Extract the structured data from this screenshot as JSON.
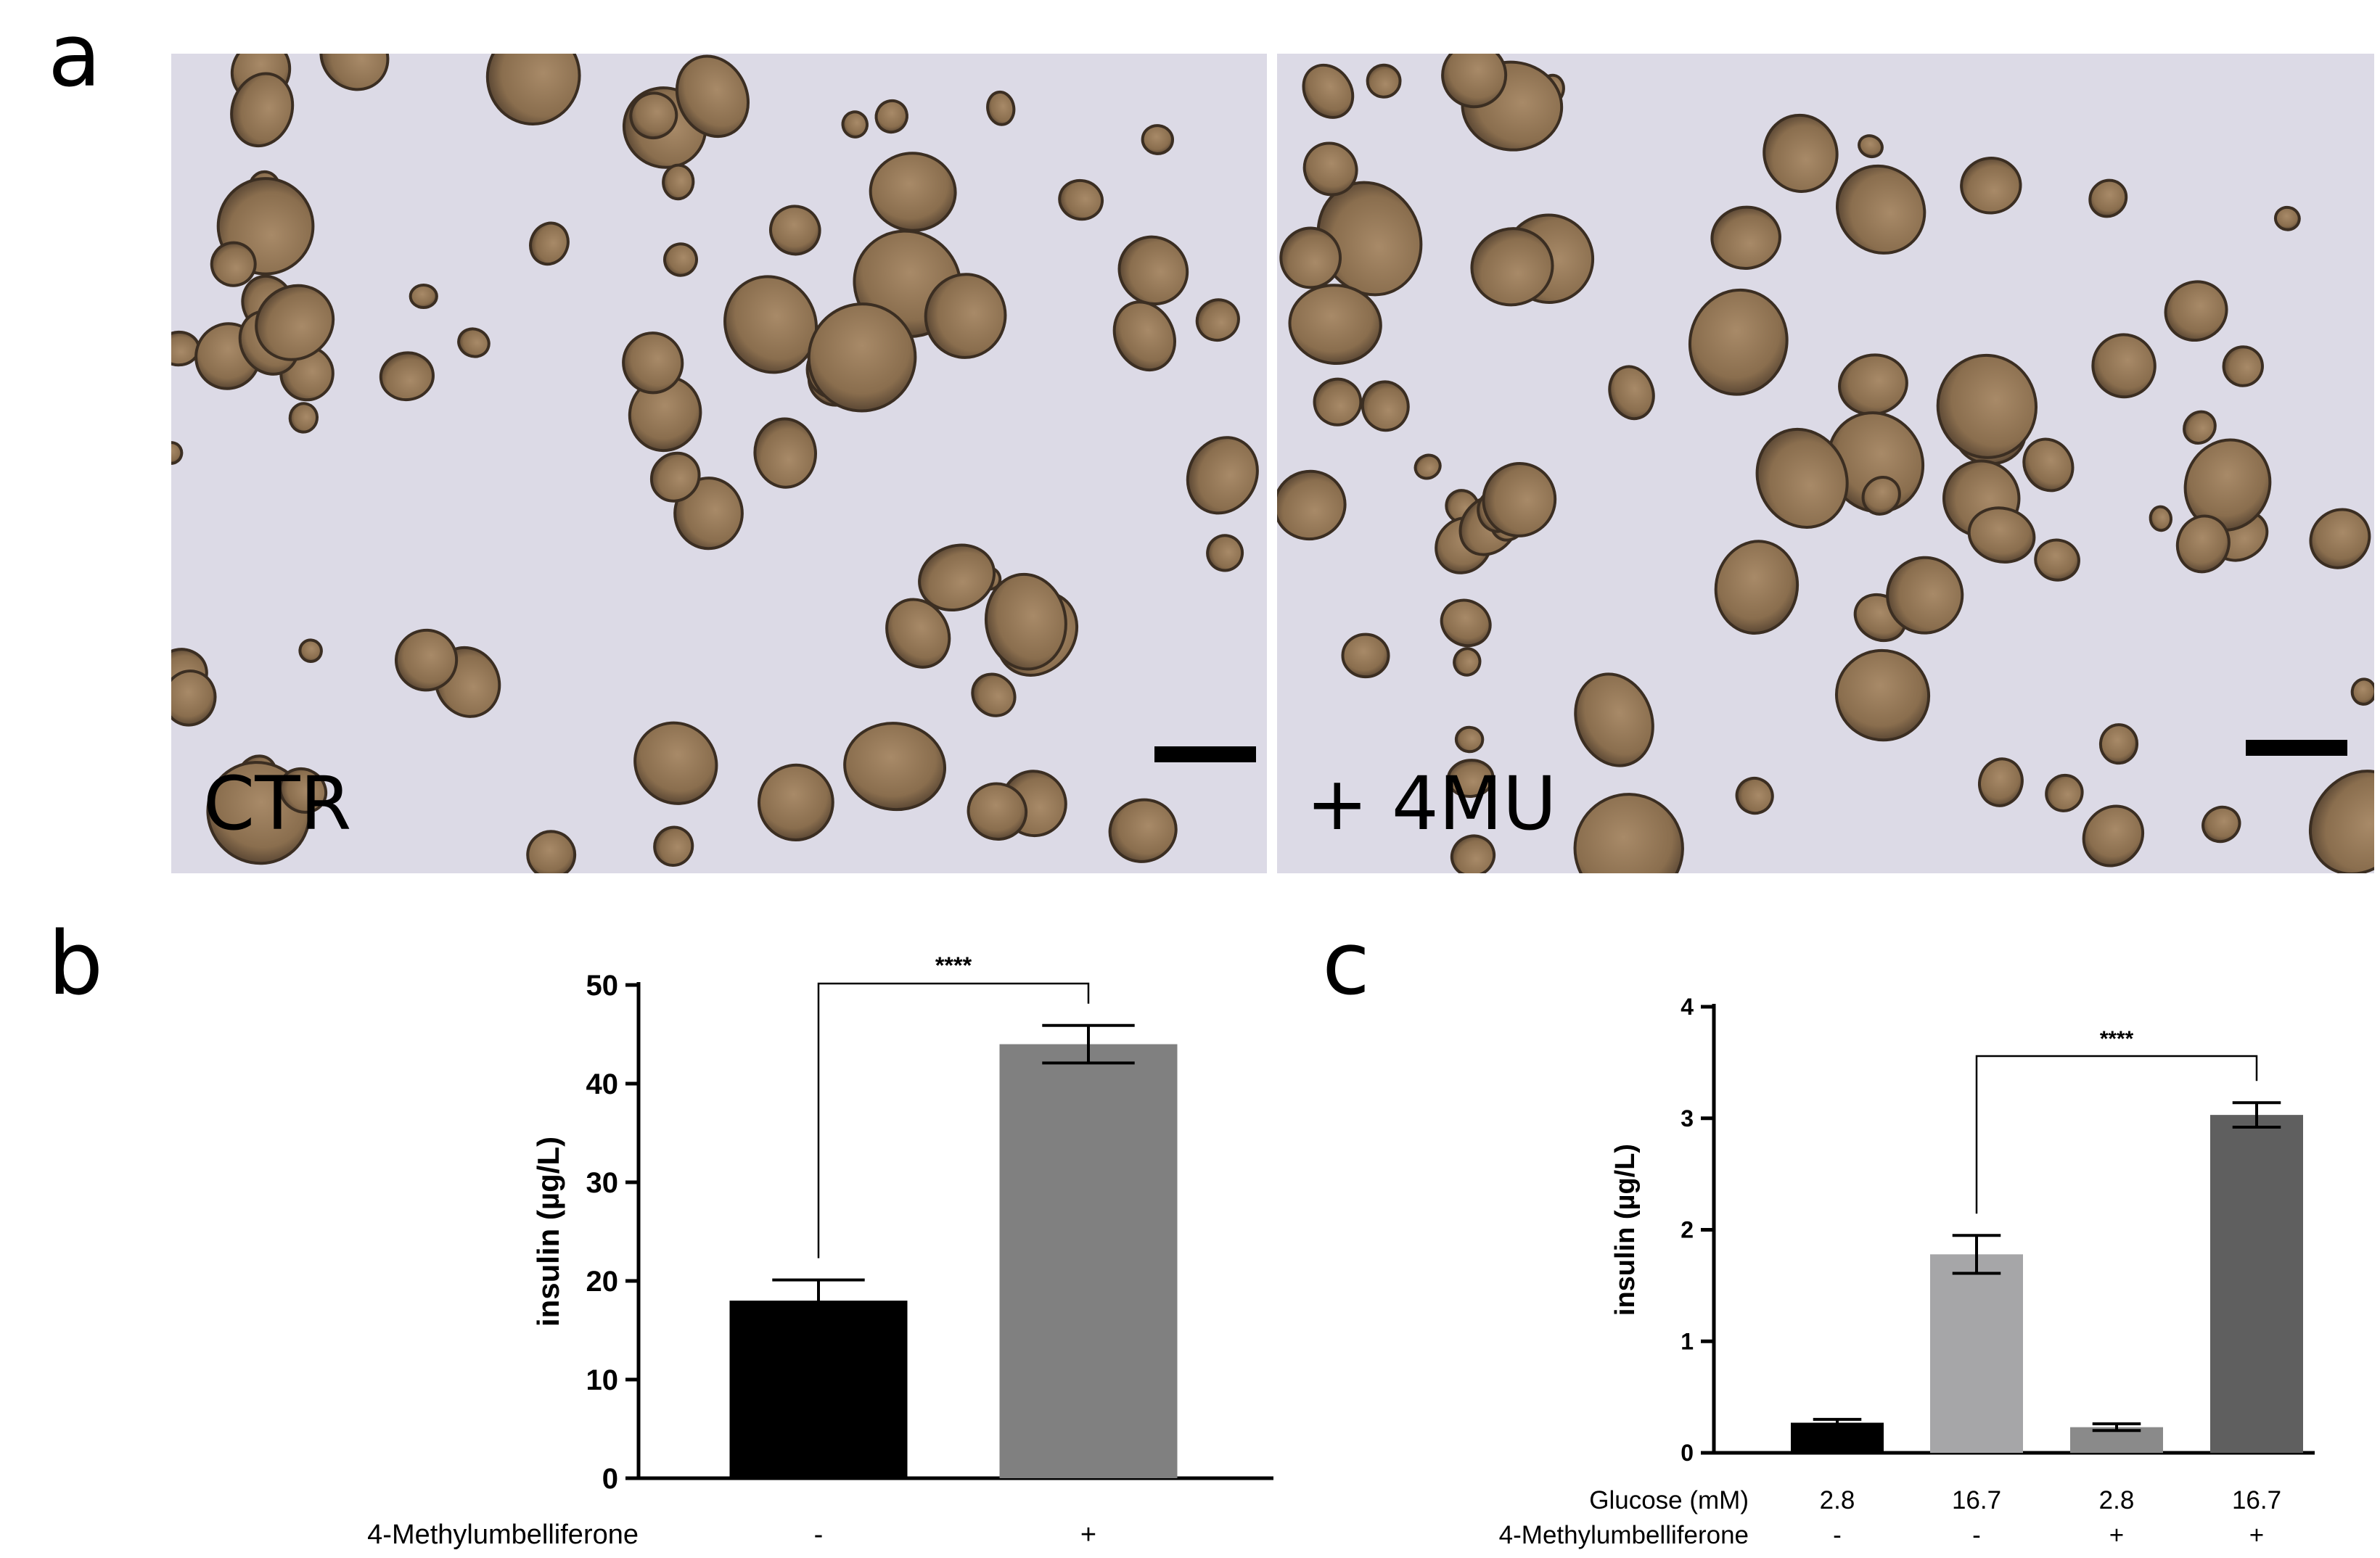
{
  "figure": {
    "panel_a": {
      "letter": "a",
      "images": [
        {
          "label": "CTR",
          "seed": 7
        },
        {
          "label": "+ 4MU",
          "seed": 19
        }
      ]
    },
    "panel_b": {
      "letter": "b"
    },
    "panel_c": {
      "letter": "c"
    }
  },
  "colors": {
    "background_micro": "#dcdae6",
    "spheroid_fill": "#8a6e4e",
    "spheroid_rim": "#3b2e22"
  },
  "chart_data": [
    {
      "type": "bar",
      "panel": "b",
      "categories": [
        "-",
        "+"
      ],
      "row_labels": [
        {
          "name": "4-Methylumbelliferone",
          "values": [
            "-",
            "+"
          ]
        }
      ],
      "values": [
        18,
        44
      ],
      "errors": [
        2.1,
        1.9
      ],
      "colors": [
        "#000000",
        "#808080"
      ],
      "ylabel": "insulin (µg/L)",
      "ylim": [
        0,
        50
      ],
      "yticks": [
        0,
        10,
        20,
        30,
        40,
        50
      ],
      "significance": {
        "from": 0,
        "to": 1,
        "label": "****"
      },
      "grid": false
    },
    {
      "type": "bar",
      "panel": "c",
      "categories": [
        "2.8 / -",
        "16.7 / -",
        "2.8 / +",
        "16.7 / +"
      ],
      "row_labels": [
        {
          "name": "Glucose (mM)",
          "values": [
            "2.8",
            "16.7",
            "2.8",
            "16.7"
          ]
        },
        {
          "name": "4-Methylumbelliferone",
          "values": [
            "-",
            "-",
            "+",
            "+"
          ]
        }
      ],
      "values": [
        0.27,
        1.78,
        0.23,
        3.03
      ],
      "errors": [
        0.03,
        0.17,
        0.03,
        0.11
      ],
      "colors": [
        "#000000",
        "#a6a6a8",
        "#8a8a8a",
        "#5f5f5f"
      ],
      "ylabel": "insulin (µg/L)",
      "ylim": [
        0,
        4
      ],
      "yticks": [
        0,
        1,
        2,
        3,
        4
      ],
      "significance": {
        "from": 1,
        "to": 3,
        "label": "****"
      },
      "grid": false
    }
  ]
}
